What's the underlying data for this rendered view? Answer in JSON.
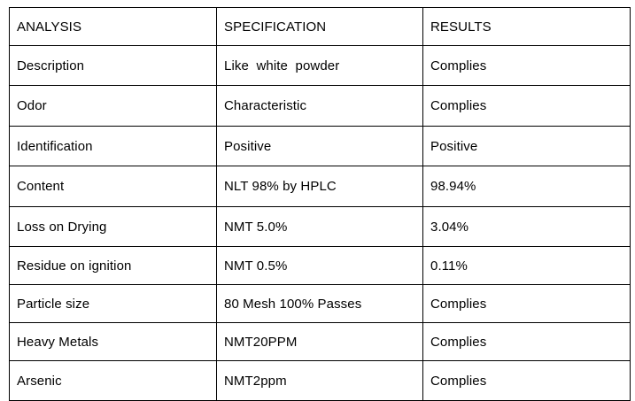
{
  "headers": [
    "ANALYSIS",
    "SPECIFICATION",
    "RESULTS"
  ],
  "rows": [
    {
      "analysis": "Description",
      "specification": "Like  white  powder",
      "result": "Complies"
    },
    {
      "analysis": "Odor",
      "specification": "Characteristic",
      "result": "Complies"
    },
    {
      "analysis": "Identification",
      "specification": "Positive",
      "result": "Positive"
    },
    {
      "analysis": "Content",
      "specification": "NLT 98% by HPLC",
      "result": "98.94%"
    },
    {
      "analysis": "Loss on Drying",
      "specification": "NMT 5.0%",
      "result": "3.04%"
    },
    {
      "analysis": "Residue on ignition",
      "specification": "NMT 0.5%",
      "result": "0.11%"
    },
    {
      "analysis": "Particle size",
      "specification": "80 Mesh 100% Passes",
      "result": "Complies"
    },
    {
      "analysis": "Heavy Metals",
      "specification": "NMT20PPM",
      "result": "Complies"
    },
    {
      "analysis": "Arsenic",
      "specification": "NMT2ppm",
      "result": "Complies"
    }
  ]
}
